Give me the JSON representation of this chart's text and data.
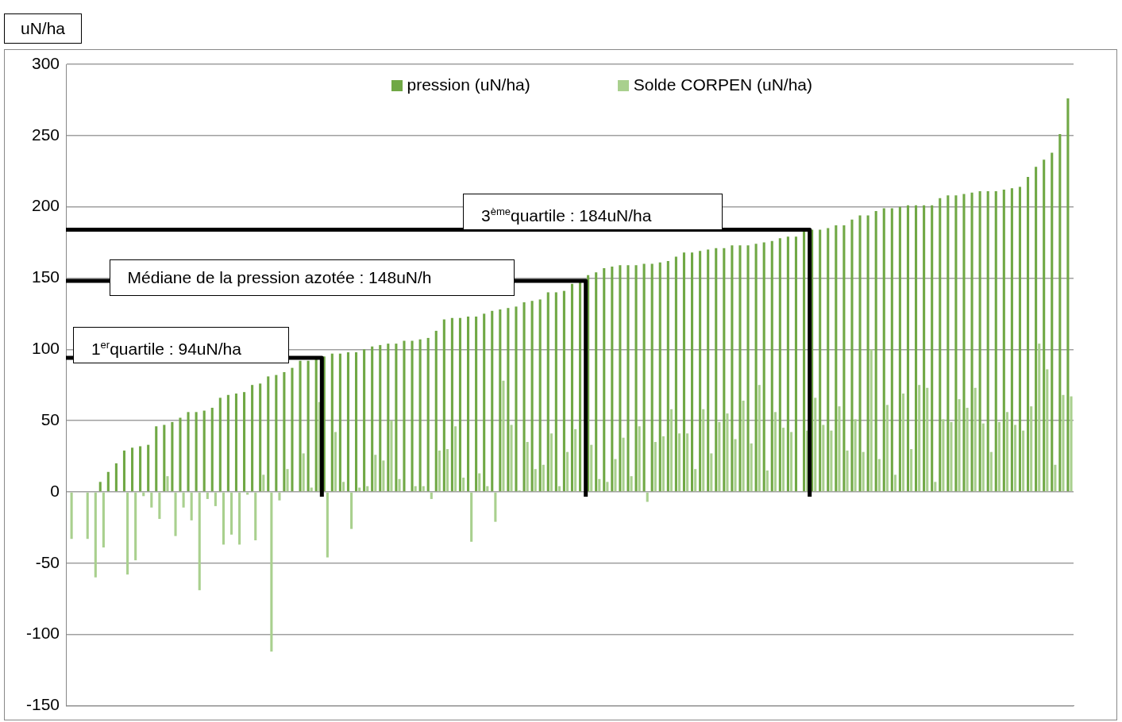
{
  "chart_data": {
    "type": "bar",
    "ylabel": "uN/ha",
    "categories": [
      null,
      null,
      null,
      null,
      null,
      null,
      null,
      null,
      null,
      null,
      null,
      null,
      null,
      null,
      null,
      null,
      null,
      null,
      null,
      null,
      null,
      null,
      null,
      null,
      null,
      null,
      null,
      null,
      null,
      null,
      null,
      null,
      null,
      null,
      null,
      null,
      null,
      null,
      null,
      null,
      null,
      null,
      null,
      null,
      null,
      null,
      null,
      null,
      null,
      null,
      null,
      null,
      null,
      null,
      null,
      null,
      null,
      null,
      null,
      null,
      null,
      null,
      null,
      null,
      null,
      null,
      null,
      null,
      null,
      null,
      null,
      null,
      null,
      null,
      null,
      null,
      null,
      null,
      null,
      null,
      null,
      null,
      null,
      null,
      null,
      null,
      null,
      null,
      null,
      null,
      null,
      null,
      null,
      null,
      null,
      null,
      null,
      null,
      null,
      null,
      null,
      null,
      null,
      null,
      null,
      null,
      null,
      null,
      null,
      null,
      null,
      null,
      null,
      null,
      null,
      null,
      null,
      null,
      null,
      null,
      null,
      null,
      null,
      null,
      null,
      null
    ],
    "series": [
      {
        "name": "pression (uN/ha)",
        "color": "#70a845",
        "values": [
          0,
          0,
          0,
          0,
          7,
          14,
          20,
          29,
          31,
          32,
          33,
          46,
          47,
          49,
          52,
          56,
          56,
          57,
          59,
          66,
          68,
          69,
          70,
          75,
          76,
          81,
          82,
          84,
          87,
          92,
          92,
          93,
          95,
          97,
          97,
          98,
          98,
          100,
          102,
          103,
          104,
          104,
          106,
          106,
          107,
          108,
          113,
          121,
          122,
          122,
          123,
          123,
          125,
          127,
          128,
          129,
          130,
          133,
          134,
          135,
          140,
          140,
          141,
          146,
          147,
          152,
          154,
          157,
          158,
          159,
          159,
          159,
          160,
          160,
          161,
          162,
          165,
          168,
          168,
          169,
          170,
          171,
          171,
          173,
          173,
          173,
          174,
          175,
          176,
          178,
          179,
          179,
          183,
          184,
          184,
          185,
          187,
          187,
          191,
          194,
          194,
          197,
          199,
          199,
          200,
          201,
          201,
          201,
          201,
          206,
          208,
          208,
          209,
          210,
          211,
          211,
          211,
          212,
          213,
          214,
          221,
          228,
          233,
          238,
          251,
          276
        ]
      },
      {
        "name": "Solde CORPEN (uN/ha)",
        "color": "#a9d08e",
        "values": [
          -33,
          0,
          -33,
          -60,
          -39,
          0,
          0,
          -58,
          -48,
          -3,
          -11,
          -19,
          11,
          -31,
          -11,
          -20,
          -69,
          -5,
          -10,
          -37,
          -30,
          -37,
          -2,
          -34,
          12,
          -112,
          -6,
          16,
          0,
          27,
          3,
          63,
          -46,
          42,
          7,
          -26,
          3,
          4,
          26,
          22,
          50,
          9,
          0,
          4,
          4,
          -5,
          29,
          30,
          46,
          10,
          -35,
          13,
          4,
          -21,
          78,
          47,
          1,
          35,
          16,
          19,
          41,
          4,
          28,
          44,
          0,
          33,
          9,
          7,
          23,
          38,
          11,
          46,
          -7,
          35,
          39,
          58,
          41,
          41,
          16,
          58,
          27,
          49,
          55,
          37,
          64,
          34,
          75,
          15,
          56,
          45,
          42,
          null,
          43,
          66,
          47,
          43,
          60,
          29,
          51,
          28,
          100,
          23,
          61,
          12,
          69,
          30,
          75,
          73,
          7,
          51,
          49,
          65,
          59,
          73,
          48,
          28,
          49,
          56,
          47,
          43,
          60,
          104,
          86,
          19,
          68,
          67
        ]
      }
    ],
    "ylim": [
      -150,
      300
    ],
    "yticks": [
      -150,
      -100,
      -50,
      0,
      50,
      100,
      150,
      200,
      250,
      300
    ],
    "grid": "y",
    "legend": "top",
    "tick_labels": "y",
    "ref_lines": [
      {
        "axis": "y",
        "value": 94,
        "label": "1$^{er}$quartile : 94uN/ha",
        "color": "#000000"
      },
      {
        "axis": "y",
        "value": 148,
        "label": "Médiane de la pression azotée : 148uN/h",
        "color": "#000000"
      },
      {
        "axis": "y",
        "value": 184,
        "label": "3$^{ème}$quartile : 184uN/ha",
        "color": "#000000"
      }
    ]
  }
}
